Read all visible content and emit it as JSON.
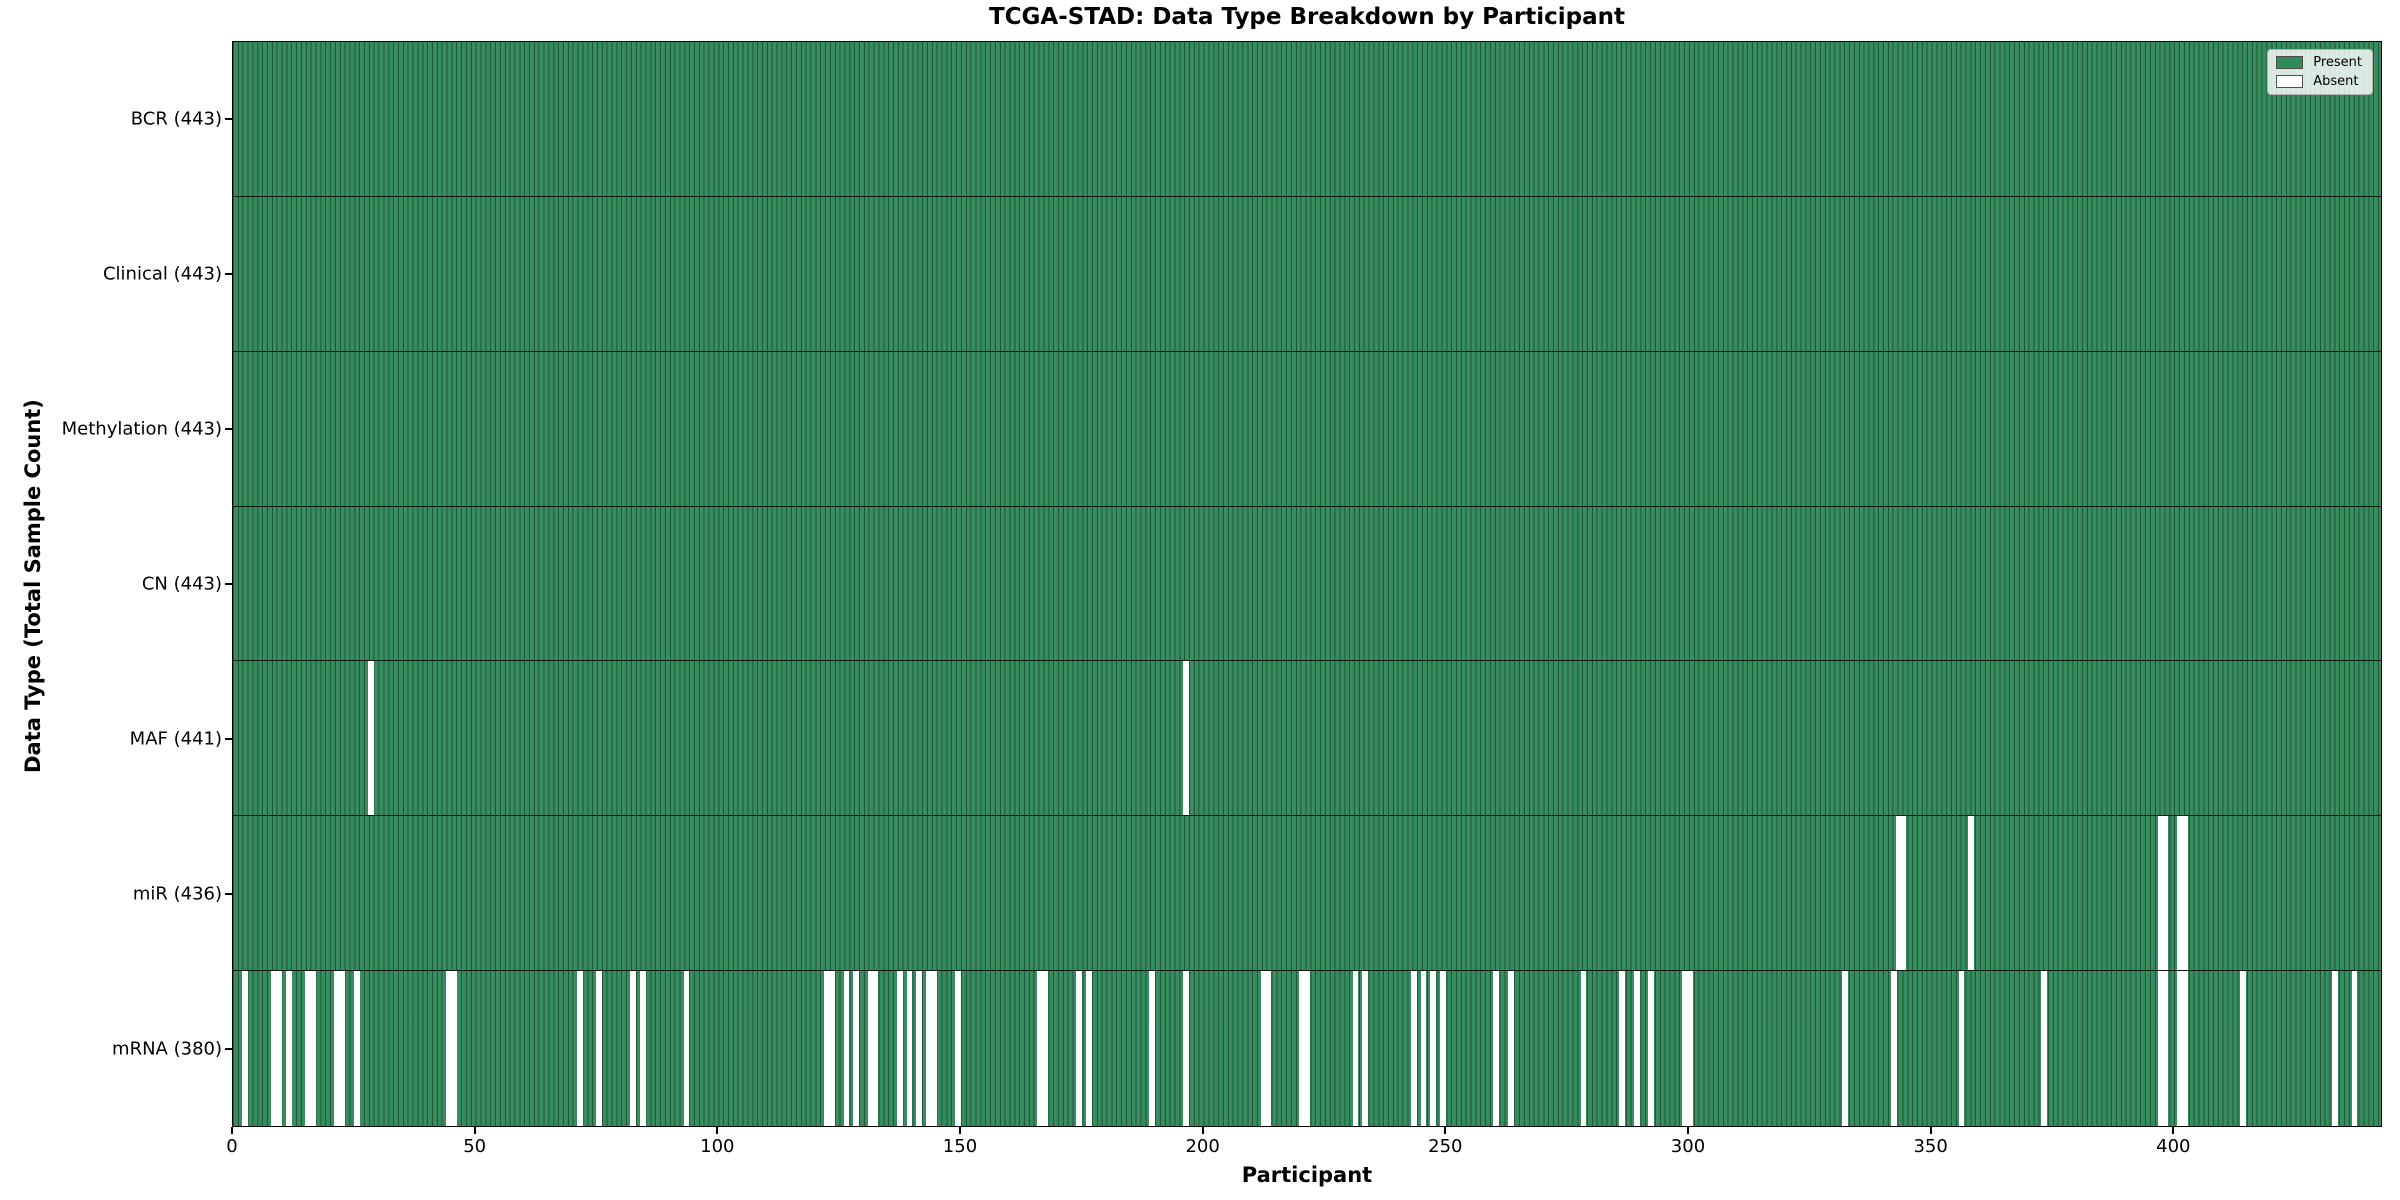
{
  "chart_data": {
    "type": "heatmap",
    "title": "TCGA-STAD: Data Type Breakdown by Participant",
    "xlabel": "Participant",
    "ylabel": "Data Type (Total Sample Count)",
    "n_participants": 443,
    "x_range": [
      0,
      443
    ],
    "x_ticks": [
      0,
      50,
      100,
      150,
      200,
      250,
      300,
      350,
      400
    ],
    "grid": false,
    "legend_position": "upper right",
    "colors": {
      "present": "#338a5b",
      "absent": "#ffffff",
      "bar_edge": "#0a2b1a",
      "row_separator": "#000000"
    },
    "legend": [
      {
        "label": "Present",
        "color": "#338a5b"
      },
      {
        "label": "Absent",
        "color": "#ffffff"
      }
    ],
    "rows": [
      {
        "name": "BCR",
        "label": "BCR (443)",
        "total": 443,
        "absent": []
      },
      {
        "name": "Clinical",
        "label": "Clinical (443)",
        "total": 443,
        "absent": []
      },
      {
        "name": "Methylation",
        "label": "Methylation (443)",
        "total": 443,
        "absent": []
      },
      {
        "name": "CN",
        "label": "CN (443)",
        "total": 443,
        "absent": []
      },
      {
        "name": "MAF",
        "label": "MAF (441)",
        "total": 441,
        "absent": [
          28,
          196
        ]
      },
      {
        "name": "miR",
        "label": "miR (436)",
        "total": 436,
        "absent": [
          343,
          344,
          358,
          397,
          398,
          401,
          402
        ]
      },
      {
        "name": "mRNA",
        "label": "mRNA (380)",
        "total": 380,
        "absent": [
          2,
          8,
          9,
          11,
          15,
          16,
          21,
          22,
          25,
          44,
          45,
          71,
          75,
          82,
          84,
          93,
          122,
          123,
          126,
          128,
          131,
          132,
          137,
          139,
          141,
          143,
          144,
          149,
          166,
          167,
          174,
          176,
          189,
          196,
          212,
          213,
          220,
          221,
          231,
          233,
          243,
          245,
          247,
          249,
          260,
          263,
          278,
          286,
          289,
          292,
          299,
          300,
          332,
          342,
          356,
          373,
          397,
          398,
          401,
          402,
          414,
          433,
          437
        ]
      }
    ]
  }
}
